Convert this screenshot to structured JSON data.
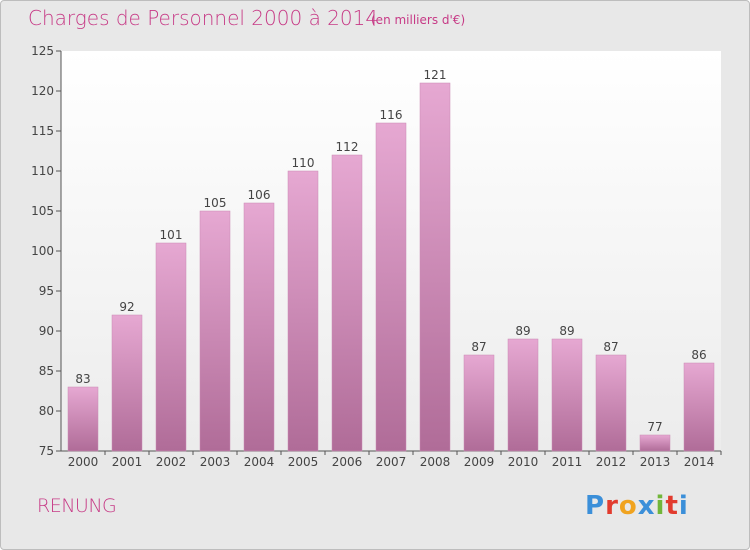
{
  "header": {
    "title": "Charges de Personnel 2000 à 2014",
    "subtitle": "(en milliers d'€)"
  },
  "footer": {
    "commune": "RENUNG",
    "logo_text": "Proxiti"
  },
  "colors": {
    "title": "#c73a86",
    "bar_top": "#e6a8d2",
    "bar_bottom": "#b06c98",
    "background": "#e8e8e8",
    "logo": [
      "#3b8fd9",
      "#e23b2e",
      "#f0a31f",
      "#3b8fd9",
      "#72b63a",
      "#e23b2e",
      "#3b8fd9"
    ]
  },
  "chart_data": {
    "type": "bar",
    "title": "Charges de Personnel 2000 à 2014",
    "subtitle": "(en milliers d'€)",
    "xlabel": "",
    "ylabel": "",
    "categories": [
      "2000",
      "2001",
      "2002",
      "2003",
      "2004",
      "2005",
      "2006",
      "2007",
      "2008",
      "2009",
      "2010",
      "2011",
      "2012",
      "2013",
      "2014"
    ],
    "values": [
      83,
      92,
      101,
      105,
      106,
      110,
      112,
      116,
      121,
      87,
      89,
      89,
      87,
      77,
      86
    ],
    "ylim": [
      75,
      125
    ],
    "yticks": [
      75,
      80,
      85,
      90,
      95,
      100,
      105,
      110,
      115,
      120,
      125
    ],
    "grid": false,
    "data_labels": true
  }
}
